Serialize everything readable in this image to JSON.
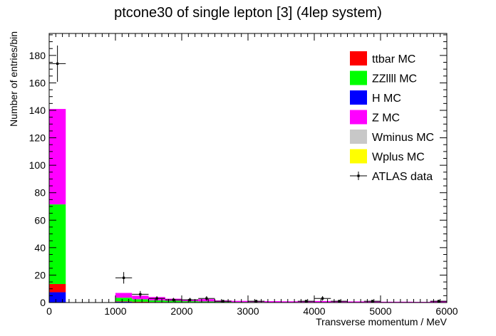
{
  "chart_data": {
    "type": "bar",
    "title": "ptcone30 of single lepton [3] (4lep system)",
    "xlabel": "Transverse momentum / MeV",
    "ylabel": "Number of entries/bin",
    "xlim": [
      0,
      6000
    ],
    "ylim": [
      0,
      196
    ],
    "x_ticks": [
      "0",
      "1000",
      "2000",
      "3000",
      "4000",
      "5000",
      "6000"
    ],
    "y_ticks": [
      "0",
      "20",
      "40",
      "60",
      "80",
      "100",
      "120",
      "140",
      "160",
      "180"
    ],
    "bin_width": 250,
    "stacked": true,
    "legend_position": "top-right",
    "bin_starts": [
      0,
      1000,
      1250,
      1500,
      1750,
      2000,
      2250,
      2500,
      2750,
      3000,
      3250,
      3500,
      3750,
      4000,
      4250,
      4500,
      4750,
      5000,
      5250,
      5500,
      5750
    ],
    "series": [
      {
        "name": "H MC",
        "color": "#0000ff",
        "values": [
          7.5,
          0.6,
          0.4,
          0.3,
          0.2,
          0.2,
          0.1,
          0.1,
          0.1,
          0.1,
          0.1,
          0.1,
          0.1,
          0.1,
          0.1,
          0.0,
          0.0,
          0.0,
          0.0,
          0.0,
          0.0
        ]
      },
      {
        "name": "ttbar MC",
        "color": "#ff0000",
        "values": [
          6.0,
          0.3,
          0.2,
          0.1,
          0.1,
          0.1,
          0.1,
          0.0,
          0.0,
          0.0,
          0.0,
          0.0,
          0.0,
          0.0,
          0.0,
          0.0,
          0.0,
          0.0,
          0.0,
          0.0,
          0.0
        ]
      },
      {
        "name": "ZZllll MC",
        "color": "#00ff00",
        "values": [
          58.0,
          2.6,
          1.8,
          1.2,
          1.0,
          0.7,
          0.6,
          0.4,
          0.3,
          0.3,
          0.2,
          0.2,
          0.2,
          0.2,
          0.2,
          0.2,
          0.1,
          0.1,
          0.1,
          0.1,
          0.1
        ]
      },
      {
        "name": "Z MC",
        "color": "#ff00ff",
        "values": [
          69.5,
          3.5,
          2.6,
          2.4,
          1.5,
          1.0,
          1.7,
          1.0,
          0.8,
          0.6,
          0.7,
          0.6,
          0.5,
          0.8,
          0.7,
          0.6,
          0.6,
          0.5,
          0.5,
          0.4,
          1.0
        ]
      },
      {
        "name": "Wminus MC",
        "color": "#c8c8c8",
        "values": [
          0,
          0,
          0,
          0,
          0,
          0,
          0,
          0,
          0,
          0,
          0,
          0,
          0,
          0,
          0,
          0,
          0,
          0,
          0,
          0,
          0
        ]
      },
      {
        "name": "Wplus MC",
        "color": "#ffff00",
        "values": [
          0,
          0,
          0,
          0,
          0,
          0,
          0,
          0,
          0,
          0,
          0,
          0,
          0,
          0,
          0,
          0,
          0,
          0,
          0,
          0,
          0
        ]
      }
    ],
    "data_points": {
      "name": "ATLAS data",
      "x": [
        125,
        1125,
        1375,
        1625,
        1875,
        2125,
        2375,
        2625,
        3125,
        3875,
        4125,
        4375,
        4875,
        5875
      ],
      "y": [
        174,
        18,
        6,
        3,
        2,
        2,
        3,
        1,
        1,
        1,
        3,
        1,
        1,
        1
      ],
      "err": [
        13.2,
        4.2,
        2.4,
        1.7,
        1.4,
        1.4,
        1.7,
        1.0,
        1.0,
        1.0,
        1.7,
        1.0,
        1.0,
        1.0
      ]
    }
  },
  "legend": [
    {
      "label": "ttbar MC",
      "kind": "box",
      "color": "#ff0000"
    },
    {
      "label": "ZZllll MC",
      "kind": "box",
      "color": "#00ff00"
    },
    {
      "label": "H MC",
      "kind": "box",
      "color": "#0000ff"
    },
    {
      "label": "Z MC",
      "kind": "box",
      "color": "#ff00ff"
    },
    {
      "label": "Wminus MC",
      "kind": "box",
      "color": "#c8c8c8"
    },
    {
      "label": "Wplus MC",
      "kind": "box",
      "color": "#ffff00"
    },
    {
      "label": "ATLAS data",
      "kind": "marker",
      "color": "#000000"
    }
  ]
}
